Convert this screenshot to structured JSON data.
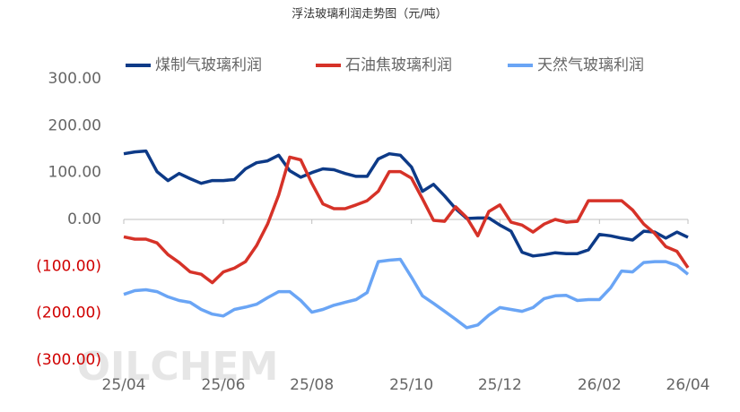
{
  "chart_data": {
    "type": "line",
    "title": "浮法玻璃利润走势图（元/吨）",
    "watermark": "OILCHEM",
    "categories": [
      "25/04",
      null,
      null,
      null,
      null,
      null,
      null,
      null,
      null,
      "25/06",
      null,
      null,
      null,
      null,
      null,
      null,
      null,
      "25/08",
      null,
      null,
      null,
      null,
      null,
      null,
      null,
      null,
      "25/10",
      null,
      null,
      null,
      null,
      null,
      null,
      null,
      "25/12",
      null,
      null,
      null,
      null,
      null,
      null,
      null,
      null,
      "26/02",
      null,
      null,
      null,
      null,
      null,
      null,
      null,
      "26/04"
    ],
    "series": [
      {
        "name": "煤制气玻璃利润",
        "color": "#0d3a87",
        "values": [
          140,
          144,
          146,
          102,
          83,
          98,
          87,
          77,
          83,
          83,
          85,
          108,
          121,
          125,
          137,
          104,
          90,
          100,
          108,
          106,
          98,
          92,
          92,
          129,
          140,
          137,
          112,
          60,
          75,
          50,
          23,
          2,
          3,
          3,
          -12,
          -25,
          -70,
          -78,
          -75,
          -71,
          -73,
          -73,
          -65,
          -32,
          -35,
          -40,
          -44,
          -25,
          -27,
          -40,
          -27,
          -38
        ]
      },
      {
        "name": "石油焦玻璃利润",
        "color": "#d63228",
        "values": [
          -37,
          -42,
          -42,
          -50,
          -75,
          -92,
          -112,
          -117,
          -135,
          -112,
          -104,
          -90,
          -56,
          -10,
          52,
          133,
          127,
          77,
          33,
          23,
          23,
          31,
          40,
          60,
          102,
          102,
          88,
          44,
          -2,
          -4,
          27,
          4,
          -35,
          17,
          31,
          -6,
          -12,
          -27,
          -10,
          0,
          -6,
          -4,
          40,
          40,
          40,
          40,
          20,
          -10,
          -30,
          -58,
          -68,
          -103
        ]
      },
      {
        "name": "天然气玻璃利润",
        "color": "#6aa5f5",
        "values": [
          -160,
          -152,
          -150,
          -154,
          -165,
          -173,
          -177,
          -192,
          -202,
          -206,
          -192,
          -187,
          -181,
          -167,
          -154,
          -154,
          -173,
          -198,
          -192,
          -183,
          -177,
          -171,
          -156,
          -90,
          -87,
          -85,
          -123,
          -163,
          -179,
          -196,
          -213,
          -231,
          -225,
          -204,
          -188,
          -192,
          -196,
          -188,
          -169,
          -163,
          -162,
          -173,
          -171,
          -171,
          -146,
          -110,
          -112,
          -92,
          -90,
          -90,
          -98,
          -117
        ]
      }
    ],
    "ylim": [
      -300,
      300
    ],
    "yticks": [
      {
        "value": 300,
        "label": "300.00"
      },
      {
        "value": 200,
        "label": "200.00"
      },
      {
        "value": 100,
        "label": "100.00"
      },
      {
        "value": 0,
        "label": "0.00"
      },
      {
        "value": -100,
        "label": "(100.00)"
      },
      {
        "value": -200,
        "label": "(200.00)"
      },
      {
        "value": -300,
        "label": "(300.00)"
      }
    ],
    "negative_tick_color": "#d00000",
    "legend": "top"
  }
}
